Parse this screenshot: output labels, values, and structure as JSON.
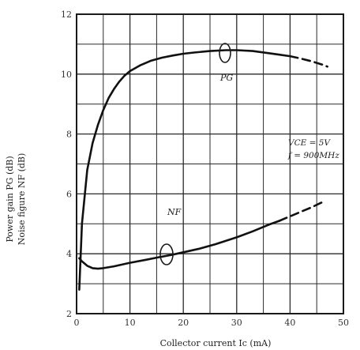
{
  "chart_data": {
    "type": "line",
    "title": "",
    "xlabel": "Collector current  Ic  (mA)",
    "ylabel": [
      "Power gain PG (dB)",
      "Noise figure NF (dB)"
    ],
    "xlim": [
      0,
      50
    ],
    "ylim": [
      2,
      12
    ],
    "x_ticks": [
      0,
      10,
      20,
      30,
      40,
      50
    ],
    "y_ticks": [
      2,
      4,
      6,
      8,
      10,
      12
    ],
    "grid": true,
    "annotations": [
      "VCE = 5V",
      "f = 900MHz"
    ],
    "series": [
      {
        "name": "PG",
        "x": [
          0.5,
          1,
          2,
          3,
          4,
          5,
          6,
          7,
          8,
          9,
          10,
          12,
          14,
          16,
          18,
          20,
          22,
          25,
          28,
          30,
          33,
          36,
          38,
          40,
          42,
          44,
          46,
          47
        ],
        "y": [
          2.8,
          5.0,
          6.8,
          7.7,
          8.3,
          8.8,
          9.2,
          9.5,
          9.75,
          9.95,
          10.1,
          10.3,
          10.45,
          10.55,
          10.62,
          10.68,
          10.72,
          10.77,
          10.8,
          10.8,
          10.77,
          10.7,
          10.65,
          10.6,
          10.52,
          10.43,
          10.32,
          10.25
        ],
        "dashed_from_x": 40
      },
      {
        "name": "NF",
        "x": [
          0.5,
          1,
          2,
          3,
          4,
          5,
          7,
          10,
          13,
          15,
          18,
          20,
          23,
          26,
          30,
          33,
          36,
          38,
          40,
          42,
          44,
          46
        ],
        "y": [
          3.85,
          3.75,
          3.6,
          3.52,
          3.5,
          3.52,
          3.58,
          3.7,
          3.8,
          3.87,
          3.97,
          4.05,
          4.17,
          4.32,
          4.55,
          4.75,
          4.97,
          5.1,
          5.25,
          5.4,
          5.55,
          5.72
        ],
        "dashed_from_x": 38
      }
    ]
  }
}
